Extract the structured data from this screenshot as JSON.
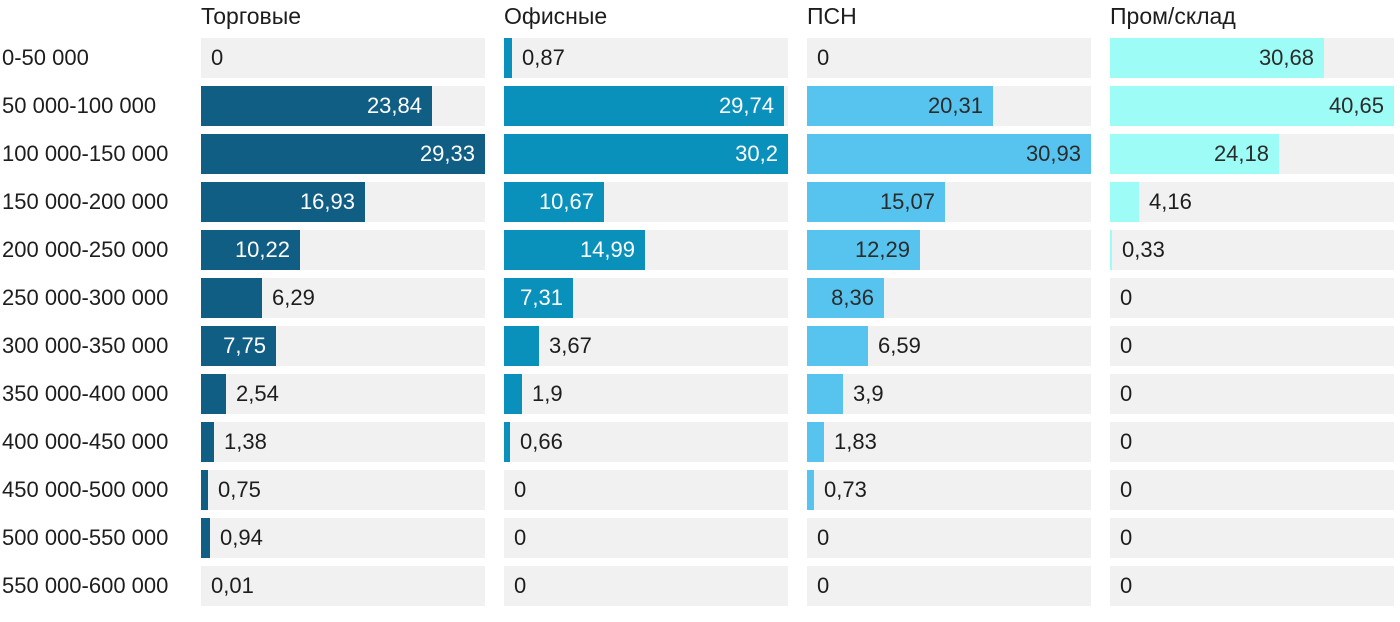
{
  "chart_data": {
    "type": "bar",
    "orientation": "horizontal",
    "scaling": "each column scaled to its own max value",
    "grid": false,
    "track_color": "#f1f1f1",
    "text_color": "#1d1d1d",
    "categories": [
      "0-50 000",
      "50 000-100 000",
      "100 000-150 000",
      "150 000-200 000",
      "200 000-250 000",
      "250 000-300 000",
      "300 000-350 000",
      "350 000-400 000",
      "400 000-450 000",
      "450 000-500 000",
      "500 000-550 000",
      "550 000-600 000"
    ],
    "series": [
      {
        "name": "Торговые",
        "color": "#115e85",
        "inside_label_color": "#ffffff",
        "values": [
          0,
          23.84,
          29.33,
          16.93,
          10.22,
          6.29,
          7.75,
          2.54,
          1.38,
          0.75,
          0.94,
          0.01
        ],
        "labels": [
          "0",
          "23,84",
          "29,33",
          "16,93",
          "10,22",
          "6,29",
          "7,75",
          "2,54",
          "1,38",
          "0,75",
          "0,94",
          "0,01"
        ]
      },
      {
        "name": "Офисные",
        "color": "#0991bc",
        "inside_label_color": "#ffffff",
        "values": [
          0.87,
          29.74,
          30.2,
          10.67,
          14.99,
          7.31,
          3.67,
          1.9,
          0.66,
          0,
          0,
          0
        ],
        "labels": [
          "0,87",
          "29,74",
          "30,2",
          "10,67",
          "14,99",
          "7,31",
          "3,67",
          "1,9",
          "0,66",
          "0",
          "0",
          "0"
        ]
      },
      {
        "name": "ПСН",
        "color": "#57c4f0",
        "inside_label_color": "#2b2b2b",
        "values": [
          0,
          20.31,
          30.93,
          15.07,
          12.29,
          8.36,
          6.59,
          3.9,
          1.83,
          0.73,
          0,
          0
        ],
        "labels": [
          "0",
          "20,31",
          "30,93",
          "15,07",
          "12,29",
          "8,36",
          "6,59",
          "3,9",
          "1,83",
          "0,73",
          "0",
          "0"
        ]
      },
      {
        "name": "Пром/склад",
        "color": "#9dfcf6",
        "inside_label_color": "#2b2b2b",
        "values": [
          30.68,
          40.65,
          24.18,
          4.16,
          0.33,
          0,
          0,
          0,
          0,
          0,
          0,
          0
        ],
        "labels": [
          "30,68",
          "40,65",
          "24,18",
          "4,16",
          "0,33",
          "0",
          "0",
          "0",
          "0",
          "0",
          "0",
          "0"
        ]
      }
    ]
  }
}
